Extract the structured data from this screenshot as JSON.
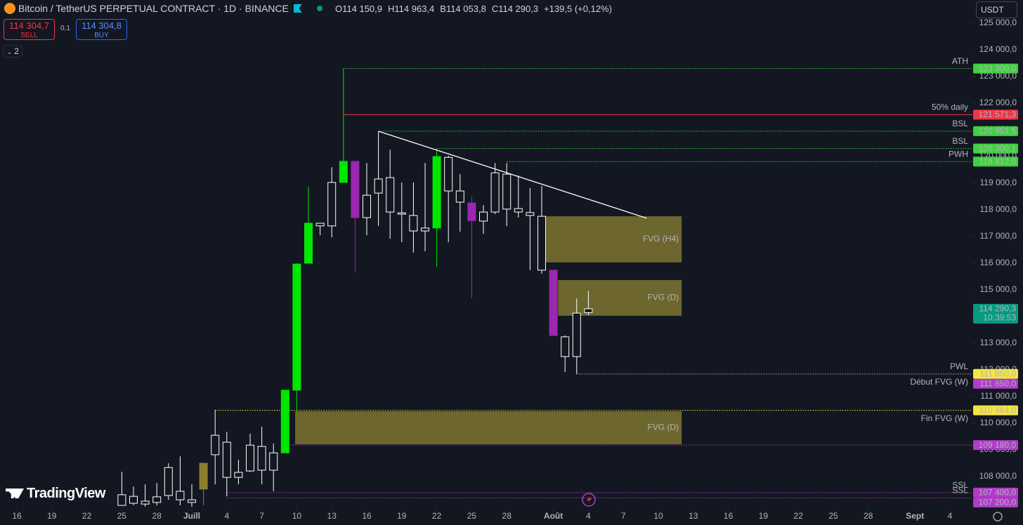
{
  "chart_data": {
    "type": "candlestick",
    "title": "Bitcoin / TetherUS PERPETUAL CONTRACT · 1D · BINANCE",
    "ohlc_header": [
      {
        "key": "O",
        "value": "114 150,9"
      },
      {
        "key": "H",
        "value": "114 963,4"
      },
      {
        "key": "B",
        "value": "114 053,8"
      },
      {
        "key": "C",
        "value": "114 290,3"
      }
    ],
    "change": "+139,5 (+0,12%)",
    "sell": {
      "price": "114 304,7",
      "label": "SELL"
    },
    "spread": "0,1",
    "buy": {
      "price": "114 304,8",
      "label": "BUY"
    },
    "indicator_count": "2",
    "currency": "USDT",
    "brand": "TradingView",
    "xlim": [
      -1.4458,
      81.9277
    ],
    "ylim": [
      106790,
      125870
    ],
    "grid": false,
    "xticks": [
      {
        "value": 0,
        "label": "16"
      },
      {
        "value": 3,
        "label": "19"
      },
      {
        "value": 6,
        "label": "22"
      },
      {
        "value": 9,
        "label": "25"
      },
      {
        "value": 12,
        "label": "28"
      },
      {
        "value": 15,
        "label": "Juill"
      },
      {
        "value": 18,
        "label": "4"
      },
      {
        "value": 21,
        "label": "7"
      },
      {
        "value": 24,
        "label": "10"
      },
      {
        "value": 27,
        "label": "13"
      },
      {
        "value": 30,
        "label": "16"
      },
      {
        "value": 33,
        "label": "19"
      },
      {
        "value": 36,
        "label": "22"
      },
      {
        "value": 39,
        "label": "25"
      },
      {
        "value": 42,
        "label": "28"
      },
      {
        "value": 46,
        "label": "Août"
      },
      {
        "value": 49,
        "label": "4"
      },
      {
        "value": 52,
        "label": "7"
      },
      {
        "value": 55,
        "label": "10"
      },
      {
        "value": 58,
        "label": "13"
      },
      {
        "value": 61,
        "label": "16"
      },
      {
        "value": 64,
        "label": "19"
      },
      {
        "value": 67,
        "label": "22"
      },
      {
        "value": 70,
        "label": "25"
      },
      {
        "value": 73,
        "label": "28"
      },
      {
        "value": 77,
        "label": "Sept"
      },
      {
        "value": 80,
        "label": "4"
      }
    ],
    "yticks": [
      {
        "value": 125000,
        "label": "125 000,0"
      },
      {
        "value": 124000,
        "label": "124 000,0"
      },
      {
        "value": 123000,
        "label": "123 000,0"
      },
      {
        "value": 122000,
        "label": "122 000,0"
      },
      {
        "value": 121000,
        "label": "121 000,0"
      },
      {
        "value": 120000,
        "label": "120 000,0"
      },
      {
        "value": 119000,
        "label": "119 000,0"
      },
      {
        "value": 118000,
        "label": "118 000,0"
      },
      {
        "value": 117000,
        "label": "117 000,0"
      },
      {
        "value": 116000,
        "label": "116 000,0"
      },
      {
        "value": 115000,
        "label": "115 000,0"
      },
      {
        "value": 114000,
        "label": "114 000,0"
      },
      {
        "value": 113000,
        "label": "113 000,0"
      },
      {
        "value": 112000,
        "label": "112 000,0"
      },
      {
        "value": 111000,
        "label": "111 000,0"
      },
      {
        "value": 110000,
        "label": "110 000,0"
      },
      {
        "value": 109000,
        "label": "109 000,0"
      },
      {
        "value": 108000,
        "label": "108 000,0"
      }
    ],
    "candles": {
      "x": [
        9,
        10,
        11,
        12,
        13,
        14,
        15,
        16,
        17,
        18,
        19,
        20,
        21,
        22,
        23,
        24,
        25,
        26,
        27,
        28,
        29,
        30,
        31,
        32,
        33,
        34,
        35,
        36,
        37,
        38,
        39,
        40,
        41,
        42,
        43,
        44,
        45,
        46,
        47,
        48,
        49
      ],
      "open": [
        106920,
        107000,
        107080,
        107030,
        107290,
        107450,
        107030,
        107530,
        108820,
        109290,
        107970,
        108210,
        109130,
        108240,
        108890,
        111240,
        116000,
        117500,
        117400,
        119030,
        119820,
        117710,
        118630,
        119210,
        117890,
        117790,
        117210,
        117320,
        119970,
        118710,
        118260,
        117580,
        117920,
        119340,
        118050,
        117900,
        117760,
        115740,
        113240,
        112500,
        114150.9
      ],
      "high": [
        108180,
        107630,
        107710,
        107760,
        108500,
        108760,
        107710,
        108500,
        110500,
        109680,
        108630,
        109610,
        109870,
        109240,
        111240,
        116000,
        118870,
        117500,
        119600,
        123290,
        119820,
        119760,
        120950,
        120260,
        119030,
        119030,
        119760,
        120290,
        120030,
        119340,
        118500,
        118180,
        119760,
        119760,
        119290,
        118820,
        118900,
        115740,
        113290,
        114680,
        114963.4
      ],
      "low": [
        106920,
        106920,
        106870,
        106920,
        107130,
        106920,
        106870,
        106920,
        107710,
        107260,
        107710,
        108180,
        107710,
        107450,
        108890,
        110400,
        116000,
        117050,
        116970,
        119030,
        115680,
        117050,
        117400,
        116920,
        116790,
        116400,
        116450,
        115870,
        116790,
        117180,
        114680,
        117100,
        117840,
        117390,
        117710,
        115740,
        115610,
        113290,
        111920,
        111850,
        114053.8
      ],
      "close": [
        107320,
        107260,
        106970,
        107240,
        108340,
        107130,
        107130,
        108500,
        109550,
        107970,
        108160,
        109180,
        108240,
        108890,
        111240,
        115970,
        117500,
        117400,
        119030,
        119820,
        117710,
        118550,
        119160,
        117920,
        117840,
        117210,
        117320,
        120000,
        118710,
        118290,
        117600,
        117920,
        119390,
        118030,
        117920,
        117790,
        115740,
        113290,
        112500,
        114130,
        114290.3
      ],
      "colors": [
        "#ffffff",
        "#ffffff",
        "#ffffff",
        "#ffffff",
        "#ffffff",
        "#ffffff",
        "#ffffff",
        "#8c7f2e",
        "#ffffff",
        "#ffffff",
        "#ffffff",
        "#ffffff",
        "#ffffff",
        "#ffffff",
        "#00e600",
        "#00e600",
        "#00e600",
        "#ffffff",
        "#ffffff",
        "#00e600",
        "#9c27b0",
        "#ffffff",
        "#ffffff",
        "#ffffff",
        "#ffffff",
        "#ffffff",
        "#ffffff",
        "#00e600",
        "#ffffff",
        "#ffffff",
        "#9c27b0",
        "#ffffff",
        "#ffffff",
        "#ffffff",
        "#ffffff",
        "#ffffff",
        "#ffffff",
        "#9c27b0",
        "#ffffff",
        "#ffffff",
        "#ffffff"
      ]
    },
    "zones": [
      {
        "label": "FVG (H4)",
        "x": [
          45,
          57
        ],
        "y": [
          116030,
          117760
        ],
        "color": "#8c8233"
      },
      {
        "label": "FVG (D)",
        "x": [
          46.4,
          57
        ],
        "y": [
          114030,
          115370
        ],
        "color": "#8c8233"
      },
      {
        "label": "FVG (D)",
        "x": [
          23.86,
          57
        ],
        "y": [
          109210,
          110450
        ],
        "color": "#8c8233"
      }
    ],
    "trendline": {
      "x": [
        31,
        54
      ],
      "y": [
        120950,
        117690
      ],
      "color": "#ffffff"
    },
    "levels": [
      {
        "name": "ATH",
        "value": 123300,
        "label": "123 300,0",
        "color": "#3fd13f",
        "start": 28,
        "style": "dotted"
      },
      {
        "name": "50% daily",
        "value": 121571.3,
        "label": "121 571,3",
        "color": "#f23645",
        "start": 28,
        "style": "solid"
      },
      {
        "name": "BSL",
        "value": 120951.5,
        "label": "120 951,5",
        "color": "#3fd13f",
        "start": 31,
        "style": "dotted"
      },
      {
        "name": "BSL",
        "value": 120300.1,
        "label": "120 300,1",
        "color": "#3fd13f",
        "start": 36,
        "style": "dotted"
      },
      {
        "name": "PWH",
        "value": 119812.0,
        "label": "119 812,0",
        "color": "#3fd13f",
        "start": 42,
        "style": "dotted"
      },
      {
        "name": "Début FVG (W)",
        "value": 111850,
        "label": "111 850,0",
        "color": "#f5e642",
        "start": 48,
        "style": "dotted",
        "label_side": "below"
      },
      {
        "name": "PWL",
        "value": 111850,
        "label": "111 850,0",
        "color": "#b03cc7",
        "start": 48,
        "style": "dotted"
      },
      {
        "name": "Fin FVG (W)",
        "value": 110484,
        "label": "110 484,0",
        "color": "#f5e642",
        "start": 17,
        "style": "dotted",
        "label_side": "below"
      },
      {
        "value": 109180,
        "label": "109 180,0",
        "color": "#b03cc7",
        "start": 23,
        "style": "dotted"
      },
      {
        "name": "SSL",
        "value": 107400,
        "label": "107 400,0",
        "color": "#b03cc7",
        "start": 18,
        "style": "dotted"
      },
      {
        "name": "SSL",
        "value": 107200,
        "label": "107 200,0",
        "color": "#b03cc7",
        "start": 18,
        "style": "dotted"
      }
    ],
    "last_price": {
      "value": 114290.3,
      "label": "114 290,3",
      "countdown": "10:39:53",
      "color": "#089981"
    }
  }
}
